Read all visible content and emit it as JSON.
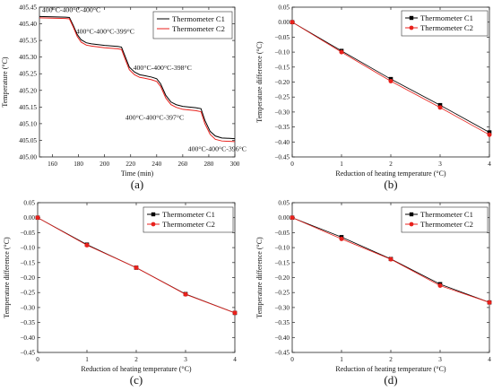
{
  "chart_data": [
    {
      "panel_label": "(a)",
      "type": "line",
      "xlabel": "Time (min)",
      "ylabel": "Temperature (°C)",
      "xlim": [
        150,
        300
      ],
      "ylim": [
        405.0,
        405.45
      ],
      "xticks": [
        160,
        180,
        200,
        220,
        240,
        260,
        280,
        300
      ],
      "yticks": [
        405.0,
        405.05,
        405.1,
        405.15,
        405.2,
        405.25,
        405.3,
        405.35,
        405.4,
        405.45
      ],
      "xtick_labels": [
        "160",
        "180",
        "200",
        "220",
        "240",
        "260",
        "280",
        "300"
      ],
      "ytick_labels": [
        "405.00",
        "405.05",
        "405.10",
        "405.15",
        "405.20",
        "405.25",
        "405.30",
        "405.35",
        "405.40",
        "405.45"
      ],
      "legend_position": "top-right",
      "grid": false,
      "annotations": [
        {
          "text": "400°C-400°C-400°C",
          "x": 152,
          "y": 405.435
        },
        {
          "text": "400°C-400°C-399°C",
          "x": 178,
          "y": 405.37
        },
        {
          "text": "400°C-400°C-398°C",
          "x": 222,
          "y": 405.262
        },
        {
          "text": "400°C-400°C-397°C",
          "x": 216,
          "y": 405.112
        },
        {
          "text": "400°C-400°C-396°C",
          "x": 264,
          "y": 405.017
        }
      ],
      "series": [
        {
          "name": "Thermometer C1",
          "color": "#000000",
          "x": [
            150,
            160,
            170,
            173,
            176,
            179,
            182,
            186,
            190,
            200,
            210,
            213,
            216,
            219,
            223,
            227,
            230,
            236,
            240,
            243,
            247,
            251,
            255,
            260,
            270,
            274,
            277,
            281,
            285,
            290,
            300
          ],
          "y": [
            405.422,
            405.421,
            405.42,
            405.419,
            405.395,
            405.368,
            405.352,
            405.343,
            405.34,
            405.335,
            405.332,
            405.33,
            405.3,
            405.27,
            405.255,
            405.247,
            405.245,
            405.24,
            405.235,
            405.22,
            405.185,
            405.165,
            405.157,
            405.152,
            405.148,
            405.145,
            405.11,
            405.077,
            405.063,
            405.057,
            405.055
          ]
        },
        {
          "name": "Thermometer C2",
          "color": "#e8211c",
          "x": [
            150,
            160,
            170,
            173,
            176,
            179,
            182,
            186,
            190,
            200,
            210,
            213,
            216,
            219,
            223,
            227,
            230,
            236,
            240,
            243,
            247,
            251,
            255,
            260,
            270,
            274,
            277,
            281,
            285,
            290,
            300
          ],
          "y": [
            405.418,
            405.417,
            405.416,
            405.415,
            405.39,
            405.362,
            405.345,
            405.336,
            405.333,
            405.328,
            405.325,
            405.323,
            405.292,
            405.262,
            405.247,
            405.239,
            405.237,
            405.232,
            405.227,
            405.212,
            405.177,
            405.157,
            405.149,
            405.143,
            405.139,
            405.136,
            405.1,
            405.068,
            405.053,
            405.048,
            405.046
          ]
        }
      ]
    },
    {
      "panel_label": "(b)",
      "type": "line",
      "xlabel": "Reduction of heating temperature (°C)",
      "ylabel": "Temperature difference (°C)",
      "xlim": [
        0,
        4
      ],
      "ylim": [
        -0.45,
        0.05
      ],
      "xticks": [
        0,
        1,
        2,
        3,
        4
      ],
      "yticks": [
        -0.45,
        -0.4,
        -0.35,
        -0.3,
        -0.25,
        -0.2,
        -0.15,
        -0.1,
        -0.05,
        0.0,
        0.05
      ],
      "xtick_labels": [
        "0",
        "1",
        "2",
        "3",
        "4"
      ],
      "ytick_labels": [
        "−0.45",
        "−0.40",
        "−0.35",
        "−0.30",
        "−0.25",
        "−0.20",
        "−0.15",
        "−0.10",
        "−0.05",
        "0.00",
        "0.05"
      ],
      "legend_position": "top-right",
      "grid": false,
      "series": [
        {
          "name": "Thermometer C1",
          "color": "#000000",
          "marker": "square",
          "x": [
            0,
            1,
            2,
            3,
            4
          ],
          "y": [
            0.0,
            -0.096,
            -0.19,
            -0.277,
            -0.368
          ]
        },
        {
          "name": "Thermometer C2",
          "color": "#e8211c",
          "marker": "circle",
          "x": [
            0,
            1,
            2,
            3,
            4
          ],
          "y": [
            0.0,
            -0.1,
            -0.197,
            -0.285,
            -0.376
          ]
        }
      ]
    },
    {
      "panel_label": "(c)",
      "type": "line",
      "xlabel": "Reduction of heating temperature (°C)",
      "ylabel": "Temperature difference (°C)",
      "xlim": [
        0,
        4
      ],
      "ylim": [
        -0.45,
        0.05
      ],
      "xticks": [
        0,
        1,
        2,
        3,
        4
      ],
      "yticks": [
        -0.45,
        -0.4,
        -0.35,
        -0.3,
        -0.25,
        -0.2,
        -0.15,
        -0.1,
        -0.05,
        0.0,
        0.05
      ],
      "xtick_labels": [
        "0",
        "1",
        "2",
        "3",
        "4"
      ],
      "ytick_labels": [
        "−0.45",
        "−0.40",
        "−0.35",
        "−0.30",
        "−0.25",
        "−0.20",
        "−0.15",
        "−0.10",
        "−0.05",
        "0.00",
        "0.05"
      ],
      "legend_position": "top-right",
      "grid": false,
      "series": [
        {
          "name": "Thermometer C1",
          "color": "#000000",
          "marker": "square",
          "x": [
            0,
            1,
            2,
            3,
            4
          ],
          "y": [
            0.0,
            -0.09,
            -0.167,
            -0.255,
            -0.318
          ]
        },
        {
          "name": "Thermometer C2",
          "color": "#e8211c",
          "marker": "circle",
          "x": [
            0,
            1,
            2,
            3,
            4
          ],
          "y": [
            0.0,
            -0.092,
            -0.167,
            -0.256,
            -0.318
          ]
        }
      ]
    },
    {
      "panel_label": "(d)",
      "type": "line",
      "xlabel": "Reduction of heating temperature (°C)",
      "ylabel": "Temperature difference (°C)",
      "xlim": [
        0,
        4
      ],
      "ylim": [
        -0.45,
        0.05
      ],
      "xticks": [
        0,
        1,
        2,
        3,
        4
      ],
      "yticks": [
        -0.45,
        -0.4,
        -0.35,
        -0.3,
        -0.25,
        -0.2,
        -0.15,
        -0.1,
        -0.05,
        0.0,
        0.05
      ],
      "xtick_labels": [
        "0",
        "1",
        "2",
        "3",
        "4"
      ],
      "ytick_labels": [
        "−0.45",
        "−0.40",
        "−0.35",
        "−0.30",
        "−0.25",
        "−0.20",
        "−0.15",
        "−0.10",
        "−0.05",
        "0.00",
        "0.05"
      ],
      "legend_position": "top-right",
      "grid": false,
      "series": [
        {
          "name": "Thermometer C1",
          "color": "#000000",
          "marker": "square",
          "x": [
            0,
            1,
            2,
            3,
            4
          ],
          "y": [
            0.0,
            -0.065,
            -0.138,
            -0.222,
            -0.283
          ]
        },
        {
          "name": "Thermometer C2",
          "color": "#e8211c",
          "marker": "circle",
          "x": [
            0,
            1,
            2,
            3,
            4
          ],
          "y": [
            0.0,
            -0.071,
            -0.139,
            -0.227,
            -0.283
          ]
        }
      ]
    }
  ]
}
